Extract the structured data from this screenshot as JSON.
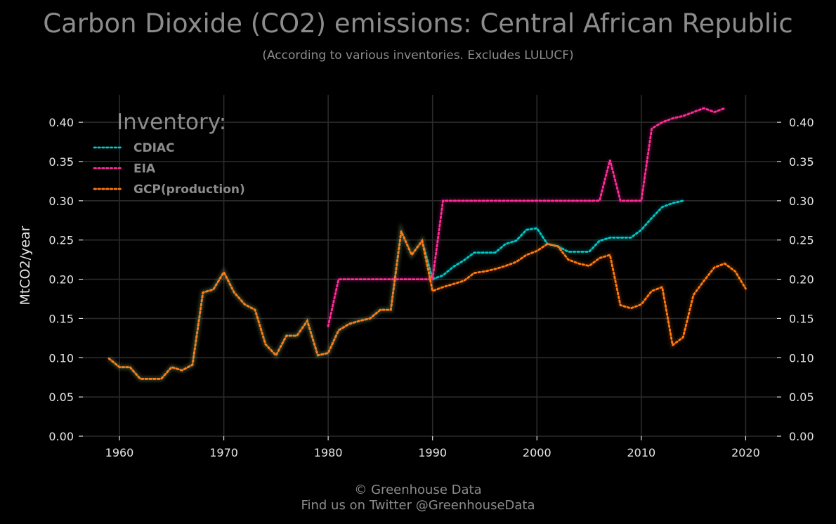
{
  "header": {
    "title": "Carbon Dioxide (CO2) emissions: Central African Republic",
    "subtitle": "(According to various inventories. Excludes LULUCF)"
  },
  "footer": {
    "line1": "© Greenhouse Data",
    "line2": "Find us on Twitter @GreenhouseData"
  },
  "chart_data": {
    "type": "line",
    "ylabel": "MtCO2/year",
    "xlim": [
      1956.5,
      2023
    ],
    "ylim": [
      0,
      0.435
    ],
    "x_ticks": [
      1960,
      1970,
      1980,
      1990,
      2000,
      2010,
      2020
    ],
    "y_ticks": [
      0.0,
      0.05,
      0.1,
      0.15,
      0.2,
      0.25,
      0.3,
      0.35,
      0.4
    ],
    "y_tick_labels": [
      "0.00",
      "0.05",
      "0.10",
      "0.15",
      "0.20",
      "0.25",
      "0.30",
      "0.35",
      "0.40"
    ],
    "grid": true,
    "legend": {
      "title": "Inventory:",
      "placement": "top-left"
    },
    "series": [
      {
        "name": "CDIAC",
        "color": "#00c8c8",
        "x": [
          1959,
          1960,
          1961,
          1962,
          1963,
          1964,
          1965,
          1966,
          1967,
          1968,
          1969,
          1970,
          1971,
          1972,
          1973,
          1974,
          1975,
          1976,
          1977,
          1978,
          1979,
          1980,
          1981,
          1982,
          1983,
          1984,
          1985,
          1986,
          1987,
          1988,
          1989,
          1990,
          1991,
          1992,
          1993,
          1994,
          1995,
          1996,
          1997,
          1998,
          1999,
          2000,
          2001,
          2002,
          2003,
          2004,
          2005,
          2006,
          2007,
          2008,
          2009,
          2010,
          2011,
          2012,
          2013,
          2014
        ],
        "y": [
          0.099,
          0.088,
          0.088,
          0.073,
          0.073,
          0.073,
          0.088,
          0.084,
          0.091,
          0.183,
          0.187,
          0.209,
          0.183,
          0.168,
          0.161,
          0.117,
          0.103,
          0.128,
          0.128,
          0.147,
          0.103,
          0.106,
          0.135,
          0.143,
          0.147,
          0.15,
          0.161,
          0.161,
          0.261,
          0.231,
          0.249,
          0.2,
          0.205,
          0.216,
          0.224,
          0.234,
          0.234,
          0.234,
          0.245,
          0.249,
          0.263,
          0.265,
          0.245,
          0.242,
          0.235,
          0.235,
          0.235,
          0.249,
          0.253,
          0.253,
          0.253,
          0.263,
          0.278,
          0.292,
          0.297,
          0.3
        ]
      },
      {
        "name": "EIA",
        "color": "#ff2d9a",
        "x": [
          1980,
          1981,
          1982,
          1983,
          1984,
          1985,
          1986,
          1987,
          1988,
          1989,
          1990,
          1991,
          1992,
          1993,
          1994,
          1995,
          1996,
          1997,
          1998,
          1999,
          2000,
          2001,
          2002,
          2003,
          2004,
          2005,
          2006,
          2007,
          2008,
          2009,
          2010,
          2011,
          2012,
          2013,
          2014,
          2015,
          2016,
          2017,
          2018
        ],
        "y": [
          0.14,
          0.2,
          0.2,
          0.2,
          0.2,
          0.2,
          0.2,
          0.2,
          0.2,
          0.2,
          0.2,
          0.3,
          0.3,
          0.3,
          0.3,
          0.3,
          0.3,
          0.3,
          0.3,
          0.3,
          0.3,
          0.3,
          0.3,
          0.3,
          0.3,
          0.3,
          0.3,
          0.352,
          0.3,
          0.3,
          0.3,
          0.392,
          0.4,
          0.405,
          0.408,
          0.413,
          0.418,
          0.413,
          0.418
        ]
      },
      {
        "name": "GCP(production)",
        "color": "#ff7a14",
        "x": [
          1959,
          1960,
          1961,
          1962,
          1963,
          1964,
          1965,
          1966,
          1967,
          1968,
          1969,
          1970,
          1971,
          1972,
          1973,
          1974,
          1975,
          1976,
          1977,
          1978,
          1979,
          1980,
          1981,
          1982,
          1983,
          1984,
          1985,
          1986,
          1987,
          1988,
          1989,
          1990,
          1991,
          1992,
          1993,
          1994,
          1995,
          1996,
          1997,
          1998,
          1999,
          2000,
          2001,
          2002,
          2003,
          2004,
          2005,
          2006,
          2007,
          2008,
          2009,
          2010,
          2011,
          2012,
          2013,
          2014,
          2015,
          2016,
          2017,
          2018,
          2019,
          2020
        ],
        "y": [
          0.099,
          0.088,
          0.088,
          0.073,
          0.073,
          0.073,
          0.088,
          0.084,
          0.091,
          0.183,
          0.187,
          0.209,
          0.183,
          0.168,
          0.161,
          0.117,
          0.103,
          0.128,
          0.128,
          0.147,
          0.103,
          0.106,
          0.135,
          0.143,
          0.147,
          0.15,
          0.161,
          0.161,
          0.261,
          0.231,
          0.249,
          0.185,
          0.19,
          0.194,
          0.198,
          0.208,
          0.21,
          0.213,
          0.217,
          0.222,
          0.231,
          0.236,
          0.245,
          0.242,
          0.225,
          0.22,
          0.217,
          0.227,
          0.231,
          0.167,
          0.163,
          0.168,
          0.185,
          0.19,
          0.116,
          0.126,
          0.18,
          0.198,
          0.215,
          0.22,
          0.21,
          0.188
        ]
      }
    ]
  }
}
